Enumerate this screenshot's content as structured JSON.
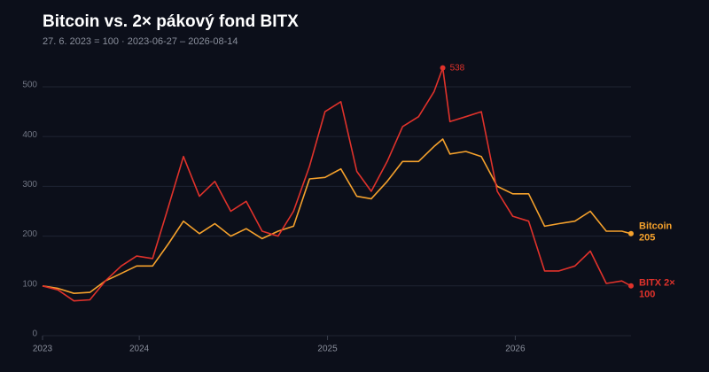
{
  "chart_data": {
    "type": "line",
    "title": "Bitcoin vs. 2× pákový fond BITX",
    "subtitle": "27. 6. 2023 = 100 · 2023-06-27 – 2026-08-14",
    "x": [
      "2023-06-27",
      "2023-07-27",
      "2023-08-27",
      "2023-09-27",
      "2023-10-27",
      "2023-11-27",
      "2023-12-27",
      "2024-01-27",
      "2024-02-27",
      "2024-03-27",
      "2024-04-27",
      "2024-05-27",
      "2024-06-27",
      "2024-07-27",
      "2024-08-27",
      "2024-09-27",
      "2024-10-27",
      "2024-11-27",
      "2024-12-27",
      "2025-01-27",
      "2025-02-27",
      "2025-03-27",
      "2025-04-27",
      "2025-05-27",
      "2025-06-27",
      "2025-07-27",
      "2025-08-13",
      "2025-08-27",
      "2025-09-27",
      "2025-10-27",
      "2025-11-27",
      "2025-12-27",
      "2026-01-27",
      "2026-02-27",
      "2026-03-27",
      "2026-04-27",
      "2026-05-27",
      "2026-06-27",
      "2026-07-27",
      "2026-08-14"
    ],
    "series": [
      {
        "name": "Bitcoin",
        "color": "#f5a12c",
        "values": [
          100,
          95,
          85,
          87,
          110,
          125,
          140,
          140,
          185,
          230,
          205,
          225,
          200,
          215,
          195,
          210,
          220,
          315,
          318,
          335,
          280,
          275,
          310,
          350,
          350,
          380,
          395,
          365,
          370,
          360,
          300,
          285,
          285,
          220,
          225,
          230,
          250,
          210,
          210,
          205
        ]
      },
      {
        "name": "BITX 2×",
        "color": "#e0322b",
        "values": [
          100,
          92,
          70,
          72,
          110,
          140,
          160,
          155,
          260,
          360,
          280,
          310,
          250,
          270,
          210,
          200,
          250,
          340,
          450,
          470,
          330,
          290,
          350,
          420,
          440,
          490,
          538,
          430,
          440,
          450,
          290,
          240,
          230,
          130,
          130,
          140,
          170,
          105,
          110,
          100
        ]
      }
    ],
    "xlim": [
      "2023-06-27",
      "2026-08-14"
    ],
    "xticks": [
      {
        "value": "2023-06-27",
        "label": "2023"
      },
      {
        "value": "2024-01-01",
        "label": "2024"
      },
      {
        "value": "2025-01-01",
        "label": "2025"
      },
      {
        "value": "2026-01-01",
        "label": "2026"
      }
    ],
    "ylim": [
      0,
      540
    ],
    "yticks": [
      0,
      100,
      200,
      300,
      400,
      500
    ],
    "grid": true
  }
}
